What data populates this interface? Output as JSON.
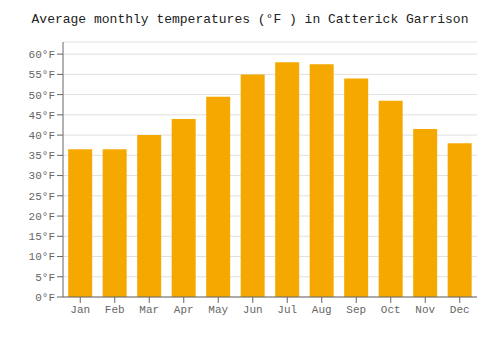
{
  "chart_data": {
    "type": "bar",
    "title": "Average monthly temperatures (°F ) in Catterick Garrison",
    "categories": [
      "Jan",
      "Feb",
      "Mar",
      "Apr",
      "May",
      "Jun",
      "Jul",
      "Aug",
      "Sep",
      "Oct",
      "Nov",
      "Dec"
    ],
    "values": [
      36.5,
      36.5,
      40.0,
      44.0,
      49.5,
      55.0,
      58.0,
      57.5,
      54.0,
      48.5,
      41.5,
      38.0
    ],
    "color": "#F5A800",
    "ylim": [
      0,
      63
    ],
    "yticks": [
      {
        "value": 0,
        "label": "0°F"
      },
      {
        "value": 5,
        "label": "5°F"
      },
      {
        "value": 10,
        "label": "10°F"
      },
      {
        "value": 15,
        "label": "15°F"
      },
      {
        "value": 20,
        "label": "20°F"
      },
      {
        "value": 25,
        "label": "25°F"
      },
      {
        "value": 30,
        "label": "30°F"
      },
      {
        "value": 35,
        "label": "35°F"
      },
      {
        "value": 40,
        "label": "40°F"
      },
      {
        "value": 45,
        "label": "45°F"
      },
      {
        "value": 50,
        "label": "50°F"
      },
      {
        "value": 55,
        "label": "55°F"
      },
      {
        "value": 60,
        "label": "60°F"
      }
    ],
    "grid": true
  }
}
